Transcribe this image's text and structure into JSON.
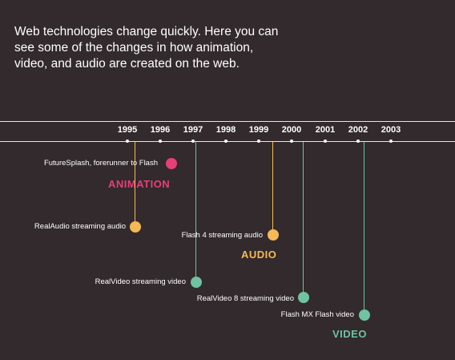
{
  "intro_text": "Web technologies change quickly. Here you can see some of the changes in how animation, video, and audio are created on the web.",
  "years": [
    "1995",
    "1996",
    "1997",
    "1998",
    "1999",
    "2000",
    "2001",
    "2002",
    "2003"
  ],
  "colors": {
    "background": "#322a2c",
    "animation": "#e83e7a",
    "audio": "#f7b955",
    "video": "#6fc2a2"
  },
  "categories": {
    "animation": "ANIMATION",
    "audio": "AUDIO",
    "video": "VIDEO"
  },
  "events": [
    {
      "label": "FutureSplash, forerunner to   Flash",
      "category": "animation",
      "year": 1996.4
    },
    {
      "label": "RealAudio streaming audio",
      "category": "audio",
      "year": 1995.0
    },
    {
      "label": "Flash   4 streaming audio",
      "category": "audio",
      "year": 1999.4
    },
    {
      "label": "RealVideo streaming video",
      "category": "video",
      "year": 1997.1
    },
    {
      "label": "RealVideo 8 streaming video",
      "category": "video",
      "year": 2000.3
    },
    {
      "label": "Flash MX Flash video",
      "category": "video",
      "year": 2002.1
    }
  ]
}
